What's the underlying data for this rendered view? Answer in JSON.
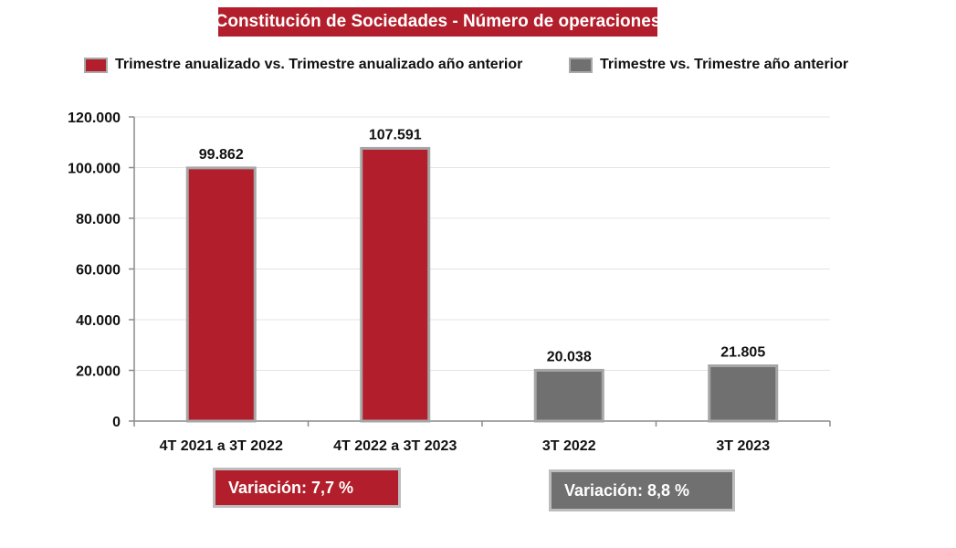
{
  "title": "Constitución de Sociedades - Número de operaciones",
  "colors": {
    "annualized": "#b21e2b",
    "quarter": "#707070",
    "bar_border": "#a6a6a6",
    "grid": "#e4e4e4",
    "axis": "#8c8c8c"
  },
  "legend": [
    {
      "label": "Trimestre anualizado vs. Trimestre anualizado año anterior",
      "color": "#b21e2b"
    },
    {
      "label": "Trimestre vs. Trimestre año anterior",
      "color": "#707070"
    }
  ],
  "chart_data": {
    "type": "bar",
    "title": "Constitución de Sociedades - Número de operaciones",
    "categories": [
      "4T 2021 a 3T 2022",
      "4T 2022 a 3T 2023",
      "3T 2022",
      "3T 2023"
    ],
    "values": [
      99862,
      107591,
      20038,
      21805
    ],
    "value_labels": [
      "99.862",
      "107.591",
      "20.038",
      "21.805"
    ],
    "bar_colors": [
      "#b21e2b",
      "#b21e2b",
      "#707070",
      "#707070"
    ],
    "ylim": [
      0,
      120000
    ],
    "yticks": [
      0,
      20000,
      40000,
      60000,
      80000,
      100000,
      120000
    ],
    "ytick_labels": [
      "0",
      "20.000",
      "40.000",
      "60.000",
      "80.000",
      "100.000",
      "120.000"
    ],
    "grid": true,
    "legend_position": "top",
    "xlabel": "",
    "ylabel": ""
  },
  "variations": [
    {
      "label": "Variación:  7,7 %",
      "color": "#b21e2b"
    },
    {
      "label": "Variación: 8,8 %",
      "color": "#707070"
    }
  ]
}
